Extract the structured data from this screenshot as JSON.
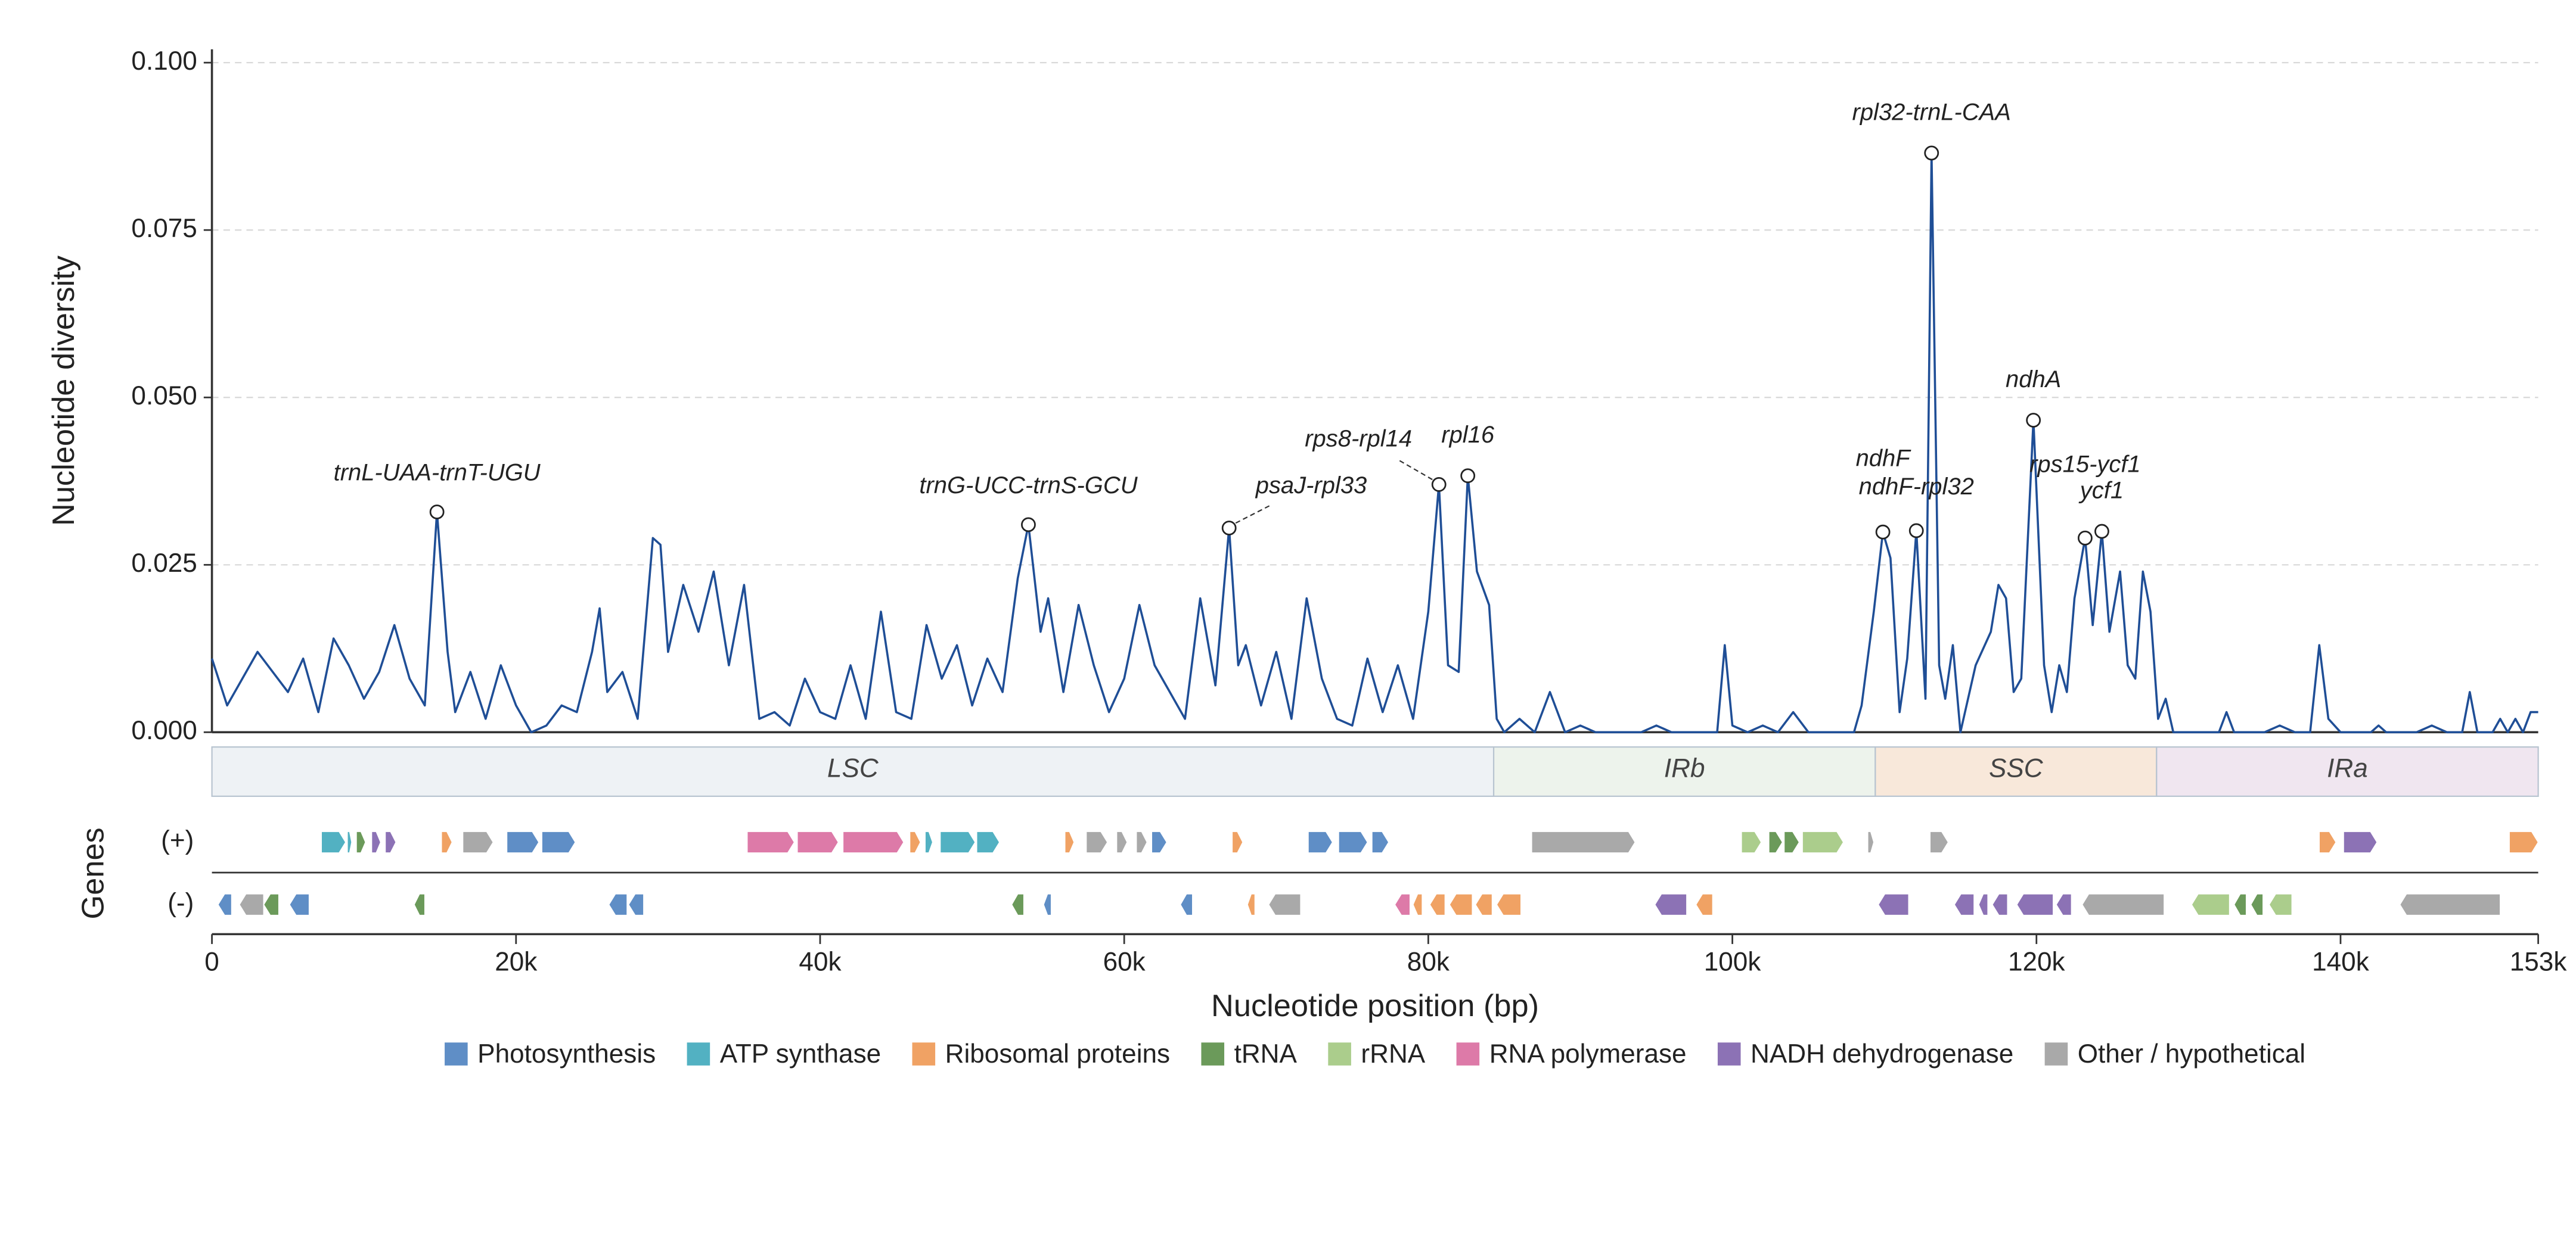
{
  "chart_data": {
    "type": "line",
    "ylabel": "Nucleotide diversity",
    "xlabel": "Nucleotide position (bp)",
    "xlim": [
      0,
      153000
    ],
    "ylim": [
      0,
      0.102
    ],
    "xticks": [
      {
        "value": 0,
        "label": "0"
      },
      {
        "value": 20000,
        "label": "20k"
      },
      {
        "value": 40000,
        "label": "40k"
      },
      {
        "value": 60000,
        "label": "60k"
      },
      {
        "value": 80000,
        "label": "80k"
      },
      {
        "value": 100000,
        "label": "100k"
      },
      {
        "value": 120000,
        "label": "120k"
      },
      {
        "value": 140000,
        "label": "140k"
      },
      {
        "value": 153000,
        "label": "153k"
      }
    ],
    "yticks": [
      {
        "value": 0,
        "label": "0.000"
      },
      {
        "value": 0.025,
        "label": "0.025"
      },
      {
        "value": 0.05,
        "label": "0.050"
      },
      {
        "value": 0.075,
        "label": "0.075"
      },
      {
        "value": 0.1,
        "label": "0.100"
      }
    ],
    "grid": true,
    "series": [
      {
        "name": "Pi",
        "color": "#1f4e96",
        "x": [
          0,
          1000,
          2000,
          3000,
          4000,
          5000,
          6000,
          7000,
          8000,
          9000,
          10000,
          11000,
          12000,
          13000,
          14000,
          14800,
          15500,
          16000,
          17000,
          18000,
          19000,
          20000,
          21000,
          22000,
          23000,
          24000,
          25000,
          25500,
          26000,
          27000,
          28000,
          29000,
          29500,
          30000,
          31000,
          32000,
          33000,
          34000,
          35000,
          36000,
          37000,
          38000,
          39000,
          40000,
          41000,
          42000,
          43000,
          44000,
          45000,
          46000,
          47000,
          48000,
          49000,
          50000,
          51000,
          52000,
          53000,
          53700,
          54500,
          55000,
          56000,
          57000,
          58000,
          59000,
          60000,
          61000,
          62000,
          63000,
          64000,
          65000,
          66000,
          66900,
          67500,
          68000,
          69000,
          70000,
          71000,
          72000,
          73000,
          74000,
          75000,
          76000,
          77000,
          78000,
          79000,
          80000,
          80700,
          81300,
          82000,
          82600,
          83200,
          84000,
          84500,
          85000,
          86000,
          87000,
          88000,
          89000,
          90000,
          91000,
          94000,
          95000,
          96000,
          99000,
          99500,
          100000,
          101000,
          102000,
          103000,
          104000,
          105000,
          108000,
          108500,
          109300,
          109900,
          110400,
          111000,
          111500,
          112100,
          112700,
          113100,
          113600,
          114000,
          114500,
          115000,
          116000,
          117000,
          117500,
          118000,
          118500,
          119000,
          119800,
          120500,
          121000,
          121500,
          122000,
          122500,
          123200,
          123700,
          124300,
          124800,
          125500,
          126000,
          126500,
          127000,
          127500,
          128000,
          128500,
          129000,
          132000,
          132500,
          133000,
          135000,
          136000,
          137000,
          138000,
          138600,
          139200,
          140000,
          142000,
          142500,
          143000,
          145000,
          146000,
          147000,
          148000,
          148500,
          149000,
          150000,
          150500,
          151000,
          151500,
          152000,
          152500,
          153000
        ],
        "values": [
          0.011,
          0.004,
          0.008,
          0.012,
          0.009,
          0.006,
          0.011,
          0.003,
          0.014,
          0.01,
          0.005,
          0.009,
          0.016,
          0.008,
          0.004,
          0.0329,
          0.012,
          0.003,
          0.009,
          0.002,
          0.01,
          0.004,
          0,
          0.001,
          0.004,
          0.003,
          0.012,
          0.0185,
          0.006,
          0.009,
          0.002,
          0.029,
          0.028,
          0.012,
          0.022,
          0.015,
          0.024,
          0.01,
          0.022,
          0.002,
          0.003,
          0.001,
          0.008,
          0.003,
          0.002,
          0.01,
          0.002,
          0.018,
          0.003,
          0.002,
          0.016,
          0.008,
          0.013,
          0.004,
          0.011,
          0.006,
          0.023,
          0.031,
          0.015,
          0.02,
          0.006,
          0.019,
          0.01,
          0.003,
          0.008,
          0.019,
          0.01,
          0.006,
          0.002,
          0.02,
          0.007,
          0.0305,
          0.01,
          0.013,
          0.004,
          0.012,
          0.002,
          0.02,
          0.008,
          0.002,
          0.001,
          0.011,
          0.003,
          0.01,
          0.002,
          0.018,
          0.037,
          0.01,
          0.009,
          0.0383,
          0.024,
          0.019,
          0.002,
          0,
          0.002,
          0,
          0.006,
          0,
          0.001,
          0,
          0,
          0.001,
          0,
          0,
          0.013,
          0.001,
          0,
          0.001,
          0,
          0.003,
          0,
          0,
          0.004,
          0.018,
          0.0299,
          0.026,
          0.003,
          0.011,
          0.0301,
          0.005,
          0.0865,
          0.01,
          0.005,
          0.013,
          0,
          0.01,
          0.015,
          0.022,
          0.02,
          0.006,
          0.008,
          0.0466,
          0.01,
          0.003,
          0.01,
          0.006,
          0.02,
          0.029,
          0.016,
          0.03,
          0.015,
          0.024,
          0.01,
          0.008,
          0.024,
          0.018,
          0.002,
          0.005,
          0,
          0,
          0.003,
          0,
          0,
          0.001,
          0,
          0,
          0.013,
          0.002,
          0,
          0,
          0.001,
          0,
          0,
          0.001,
          0,
          0,
          0.006,
          0,
          0,
          0.002,
          0,
          0.002,
          0,
          0.003,
          0.003
        ]
      }
    ],
    "annotations": [
      {
        "label": "trnL-UAA-trnT-UGU",
        "x": 14800,
        "y": 0.0329
      },
      {
        "label": "trnG-UCC-trnS-GCU",
        "x": 53700,
        "y": 0.031
      },
      {
        "label": "psaJ-rpl33",
        "x": 66900,
        "y": 0.0305
      },
      {
        "label": "rps8-rpl14",
        "x": 80700,
        "y": 0.037
      },
      {
        "label": "rpl16",
        "x": 82600,
        "y": 0.0383
      },
      {
        "label": "ndhF",
        "x": 109900,
        "y": 0.0299
      },
      {
        "label": "ndhF-rpl32",
        "x": 112100,
        "y": 0.0301
      },
      {
        "label": "rpl32-trnL-CAA",
        "x": 113100,
        "y": 0.0865
      },
      {
        "label": "ndhA",
        "x": 119800,
        "y": 0.0466
      },
      {
        "label": "rps15-ycf1",
        "x": 123200,
        "y": 0.029
      },
      {
        "label": "ycf1",
        "x": 124300,
        "y": 0.03
      }
    ],
    "regions": [
      {
        "name": "LSC",
        "start": 0,
        "end": 84300,
        "color": "#eef2f5"
      },
      {
        "name": "IRb",
        "start": 84300,
        "end": 109400,
        "color": "#edf3ec"
      },
      {
        "name": "SSC",
        "start": 109400,
        "end": 127900,
        "color": "#f8e8da"
      },
      {
        "name": "IRa",
        "start": 127900,
        "end": 153000,
        "color": "#f0e6f0"
      }
    ],
    "gene_track_title": "Genes",
    "strand_labels": [
      "(+)",
      "(-)"
    ],
    "legend": [
      {
        "name": "Photosynthesis",
        "color": "#5f8ec6"
      },
      {
        "name": "ATP synthase",
        "color": "#52b1c2"
      },
      {
        "name": "Ribosomal proteins",
        "color": "#f0a264"
      },
      {
        "name": "tRNA",
        "color": "#6b9a5a"
      },
      {
        "name": "rRNA",
        "color": "#abcd8c"
      },
      {
        "name": "RNA polymerase",
        "color": "#dd7aa8"
      },
      {
        "name": "NADH dehydrogenase",
        "color": "#8c72b5"
      },
      {
        "name": "Other / hypothetical",
        "color": "#a9a9a9"
      }
    ],
    "genes": {
      "plus": [
        {
          "start": 7200,
          "end": 8800,
          "group": "ATP synthase"
        },
        {
          "start": 8900,
          "end": 9200,
          "group": "ATP synthase"
        },
        {
          "start": 9500,
          "end": 10100,
          "group": "tRNA"
        },
        {
          "start": 10500,
          "end": 11100,
          "group": "NADH dehydrogenase"
        },
        {
          "start": 11400,
          "end": 12100,
          "group": "NADH dehydrogenase"
        },
        {
          "start": 15100,
          "end": 15800,
          "group": "Ribosomal proteins"
        },
        {
          "start": 16500,
          "end": 18500,
          "group": "Other / hypothetical"
        },
        {
          "start": 19400,
          "end": 21500,
          "group": "Photosynthesis"
        },
        {
          "start": 21700,
          "end": 23900,
          "group": "Photosynthesis"
        },
        {
          "start": 35200,
          "end": 38300,
          "group": "RNA polymerase"
        },
        {
          "start": 38500,
          "end": 41200,
          "group": "RNA polymerase"
        },
        {
          "start": 41500,
          "end": 45500,
          "group": "RNA polymerase"
        },
        {
          "start": 45900,
          "end": 46600,
          "group": "Ribosomal proteins"
        },
        {
          "start": 46900,
          "end": 47400,
          "group": "ATP synthase"
        },
        {
          "start": 47900,
          "end": 50200,
          "group": "ATP synthase"
        },
        {
          "start": 50300,
          "end": 51800,
          "group": "ATP synthase"
        },
        {
          "start": 56100,
          "end": 56700,
          "group": "Ribosomal proteins"
        },
        {
          "start": 57500,
          "end": 58900,
          "group": "Other / hypothetical"
        },
        {
          "start": 59500,
          "end": 60200,
          "group": "Other / hypothetical"
        },
        {
          "start": 60800,
          "end": 61500,
          "group": "Other / hypothetical"
        },
        {
          "start": 61800,
          "end": 62800,
          "group": "Photosynthesis"
        },
        {
          "start": 67100,
          "end": 67800,
          "group": "Ribosomal proteins"
        },
        {
          "start": 72100,
          "end": 73700,
          "group": "Photosynthesis"
        },
        {
          "start": 74100,
          "end": 76000,
          "group": "Photosynthesis"
        },
        {
          "start": 76300,
          "end": 77400,
          "group": "Photosynthesis"
        },
        {
          "start": 86800,
          "end": 93600,
          "group": "Other / hypothetical"
        },
        {
          "start": 100600,
          "end": 101900,
          "group": "rRNA"
        },
        {
          "start": 102400,
          "end": 103300,
          "group": "tRNA"
        },
        {
          "start": 103400,
          "end": 104400,
          "group": "tRNA"
        },
        {
          "start": 104600,
          "end": 107300,
          "group": "rRNA"
        },
        {
          "start": 108900,
          "end": 109300,
          "group": "Other / hypothetical"
        },
        {
          "start": 113000,
          "end": 114200,
          "group": "Other / hypothetical"
        },
        {
          "start": 138600,
          "end": 139700,
          "group": "Ribosomal proteins"
        },
        {
          "start": 140200,
          "end": 142400,
          "group": "NADH dehydrogenase"
        },
        {
          "start": 151100,
          "end": 153000,
          "group": "Ribosomal proteins"
        }
      ],
      "minus": [
        {
          "start": 400,
          "end": 1300,
          "group": "Photosynthesis"
        },
        {
          "start": 1800,
          "end": 3400,
          "group": "Other / hypothetical"
        },
        {
          "start": 3400,
          "end": 4400,
          "group": "tRNA"
        },
        {
          "start": 5100,
          "end": 6400,
          "group": "Photosynthesis"
        },
        {
          "start": 13300,
          "end": 14000,
          "group": "tRNA"
        },
        {
          "start": 26100,
          "end": 27300,
          "group": "Photosynthesis"
        },
        {
          "start": 27400,
          "end": 28400,
          "group": "Photosynthesis"
        },
        {
          "start": 52600,
          "end": 53400,
          "group": "tRNA"
        },
        {
          "start": 54700,
          "end": 55200,
          "group": "Photosynthesis"
        },
        {
          "start": 63700,
          "end": 64500,
          "group": "Photosynthesis"
        },
        {
          "start": 68100,
          "end": 68600,
          "group": "Ribosomal proteins"
        },
        {
          "start": 69500,
          "end": 71600,
          "group": "Other / hypothetical"
        },
        {
          "start": 77800,
          "end": 78800,
          "group": "RNA polymerase"
        },
        {
          "start": 79000,
          "end": 79600,
          "group": "Ribosomal proteins"
        },
        {
          "start": 80100,
          "end": 81100,
          "group": "Ribosomal proteins"
        },
        {
          "start": 81400,
          "end": 82900,
          "group": "Ribosomal proteins"
        },
        {
          "start": 83100,
          "end": 84200,
          "group": "Ribosomal proteins"
        },
        {
          "start": 84500,
          "end": 86100,
          "group": "Ribosomal proteins"
        },
        {
          "start": 94900,
          "end": 97000,
          "group": "NADH dehydrogenase"
        },
        {
          "start": 97600,
          "end": 98700,
          "group": "Ribosomal proteins"
        },
        {
          "start": 109600,
          "end": 111600,
          "group": "NADH dehydrogenase"
        },
        {
          "start": 114600,
          "end": 115900,
          "group": "NADH dehydrogenase"
        },
        {
          "start": 116200,
          "end": 116800,
          "group": "NADH dehydrogenase"
        },
        {
          "start": 117100,
          "end": 118100,
          "group": "NADH dehydrogenase"
        },
        {
          "start": 118700,
          "end": 121100,
          "group": "NADH dehydrogenase"
        },
        {
          "start": 121300,
          "end": 122300,
          "group": "NADH dehydrogenase"
        },
        {
          "start": 123000,
          "end": 128400,
          "group": "Other / hypothetical"
        },
        {
          "start": 130200,
          "end": 132700,
          "group": "rRNA"
        },
        {
          "start": 133000,
          "end": 133800,
          "group": "tRNA"
        },
        {
          "start": 134100,
          "end": 134900,
          "group": "tRNA"
        },
        {
          "start": 135300,
          "end": 136800,
          "group": "rRNA"
        },
        {
          "start": 143900,
          "end": 150500,
          "group": "Other / hypothetical"
        }
      ]
    }
  }
}
